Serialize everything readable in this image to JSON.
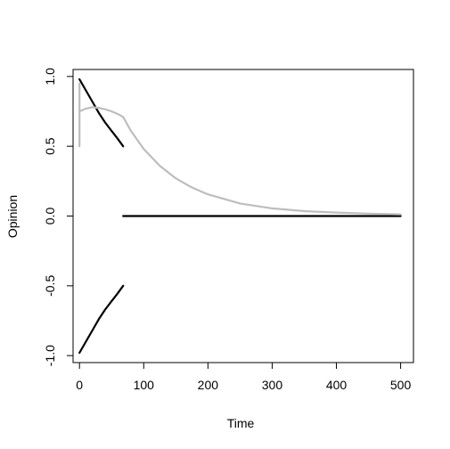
{
  "chart_data": {
    "type": "line",
    "title": "",
    "xlabel": "Time",
    "ylabel": "Opinion",
    "xlim": [
      -10,
      520
    ],
    "ylim": [
      -1.05,
      1.05
    ],
    "xticks": [
      0,
      100,
      200,
      300,
      400,
      500
    ],
    "yticks": [
      -1.0,
      -0.5,
      0.0,
      0.5,
      1.0
    ],
    "xtick_labels": [
      "0",
      "100",
      "200",
      "300",
      "400",
      "500"
    ],
    "ytick_labels": [
      "-1.0",
      "-0.5",
      "0.0",
      "0.5",
      "1.0"
    ],
    "grid": false,
    "legend": "none",
    "series": [
      {
        "color": "#000000",
        "x": [
          0,
          10,
          20,
          30,
          40,
          50,
          60,
          68
        ],
        "values": [
          0.98,
          0.9,
          0.82,
          0.74,
          0.67,
          0.61,
          0.55,
          0.5
        ]
      },
      {
        "color": "#000000",
        "x": [
          0,
          10,
          20,
          30,
          40,
          50,
          60,
          68
        ],
        "values": [
          -0.98,
          -0.9,
          -0.82,
          -0.74,
          -0.67,
          -0.61,
          -0.55,
          -0.5
        ]
      },
      {
        "color": "#000000",
        "x": [
          68,
          500
        ],
        "values": [
          0.0,
          0.0
        ]
      },
      {
        "color": "#bdbdbd",
        "x": [
          0,
          0
        ],
        "values": [
          0.5,
          0.95
        ]
      },
      {
        "color": "#bdbdbd",
        "x": [
          0,
          10,
          20,
          30,
          40,
          50,
          60,
          68,
          80,
          100,
          125,
          150,
          175,
          200,
          250,
          300,
          350,
          400,
          450,
          500
        ],
        "values": [
          0.75,
          0.77,
          0.78,
          0.775,
          0.765,
          0.75,
          0.73,
          0.71,
          0.61,
          0.48,
          0.36,
          0.27,
          0.205,
          0.155,
          0.09,
          0.055,
          0.035,
          0.025,
          0.017,
          0.012
        ]
      }
    ]
  }
}
